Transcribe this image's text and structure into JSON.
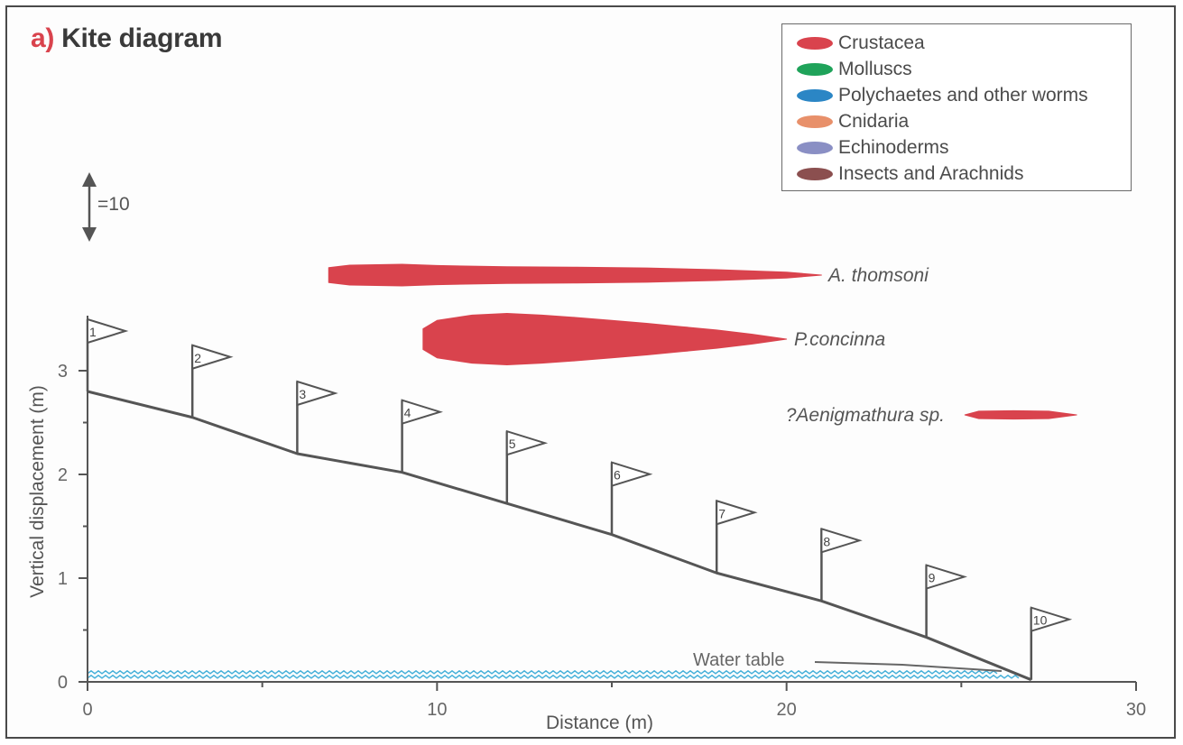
{
  "figure": {
    "title_prefix": "a)",
    "title_text": "Kite diagram",
    "scale_label": "=10"
  },
  "legend": [
    {
      "label": "Crustacea",
      "color": "#d9434d"
    },
    {
      "label": "Molluscs",
      "color": "#1fa35a"
    },
    {
      "label": "Polychaetes and other worms",
      "color": "#2b86c5"
    },
    {
      "label": "Cnidaria",
      "color": "#e8906a"
    },
    {
      "label": "Echinoderms",
      "color": "#8a8fc4"
    },
    {
      "label": "Insects and Arachnids",
      "color": "#8b4f4f"
    }
  ],
  "chart_data": {
    "type": "area",
    "title": "Kite diagram",
    "xlabel": "Distance (m)",
    "ylabel": "Vertical displacement (m)",
    "xlim": [
      0,
      30
    ],
    "ylim": [
      0,
      3.5
    ],
    "x_ticks": [
      0,
      10,
      20,
      30
    ],
    "y_ticks": [
      0,
      1,
      2,
      3
    ],
    "profile": {
      "x": [
        0,
        3,
        6,
        9,
        12,
        15,
        18,
        21,
        24,
        27
      ],
      "y": [
        2.8,
        2.55,
        2.2,
        2.02,
        1.72,
        1.42,
        1.05,
        0.78,
        0.43,
        0.02
      ]
    },
    "stations": [
      "1",
      "2",
      "3",
      "4",
      "5",
      "6",
      "7",
      "8",
      "9",
      "10"
    ],
    "water_table": {
      "label": "Water table",
      "y": 0.08
    },
    "kites": [
      {
        "name": "A. thomsoni",
        "group": "Crustacea",
        "x": [
          6.9,
          7.5,
          9,
          10,
          12,
          14,
          16,
          18,
          20,
          21
        ],
        "width": [
          1.8,
          2.4,
          2.6,
          2.3,
          2.0,
          1.9,
          1.7,
          1.3,
          0.7,
          0.0
        ]
      },
      {
        "name": "P.concinna",
        "group": "Crustacea",
        "x": [
          9.6,
          10,
          11,
          12,
          13,
          14,
          15,
          16,
          17,
          18,
          19,
          20
        ],
        "width": [
          2.5,
          4.5,
          5.8,
          6.2,
          5.8,
          5.2,
          4.5,
          3.8,
          3.0,
          2.2,
          1.2,
          0.0
        ]
      },
      {
        "name": "?Aenigmathura sp.",
        "group": "Crustacea",
        "x": [
          25.1,
          25.5,
          26.5,
          27.5,
          28.3
        ],
        "width": [
          0.0,
          0.9,
          1.0,
          0.9,
          0.0
        ]
      }
    ]
  }
}
